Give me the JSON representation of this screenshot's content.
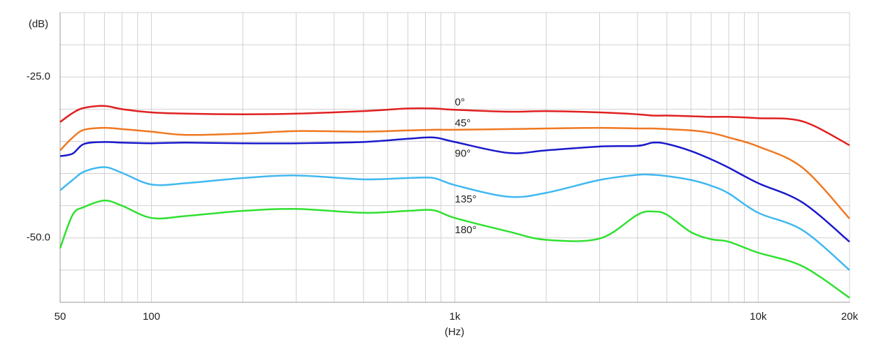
{
  "chart_data": {
    "type": "line",
    "x_label": "(Hz)",
    "y_label": "(dB)",
    "x_log": true,
    "xlim": [
      50,
      20000
    ],
    "ylim": [
      -60,
      -15
    ],
    "xticks": [
      {
        "value": 50,
        "label": "50"
      },
      {
        "value": 100,
        "label": "100"
      },
      {
        "value": 1000,
        "label": "1k"
      },
      {
        "value": 10000,
        "label": "10k"
      },
      {
        "value": 20000,
        "label": "20k"
      }
    ],
    "yticks": [
      {
        "value": -25,
        "label": "-25.0"
      },
      {
        "value": -50,
        "label": "-50.0"
      }
    ],
    "xgrid": [
      50,
      60,
      70,
      80,
      90,
      100,
      200,
      300,
      400,
      500,
      600,
      700,
      800,
      900,
      1000,
      2000,
      3000,
      4000,
      5000,
      6000,
      7000,
      8000,
      9000,
      10000,
      20000
    ],
    "ygrid": [
      -60,
      -55,
      -50,
      -45,
      -40,
      -35,
      -30,
      -25,
      -20,
      -15
    ],
    "x": [
      50,
      55,
      60,
      70,
      80,
      100,
      130,
      200,
      300,
      500,
      700,
      850,
      1000,
      1500,
      2000,
      3000,
      4000,
      4500,
      5000,
      6000,
      7000,
      8000,
      10000,
      14000,
      20000
    ],
    "series": [
      {
        "name": "0°",
        "color": "#e02020",
        "values": [
          -32.0,
          -30.6,
          -29.8,
          -29.5,
          -30.0,
          -30.5,
          -30.7,
          -30.8,
          -30.7,
          -30.3,
          -29.9,
          -29.9,
          -30.1,
          -30.4,
          -30.3,
          -30.5,
          -30.8,
          -31.0,
          -31.0,
          -31.1,
          -31.2,
          -31.2,
          -31.4,
          -31.9,
          -35.6
        ]
      },
      {
        "name": "45°",
        "color": "#f07820",
        "values": [
          -36.4,
          -34.4,
          -33.2,
          -32.9,
          -33.1,
          -33.5,
          -34.0,
          -33.8,
          -33.4,
          -33.5,
          -33.3,
          -33.2,
          -33.2,
          -33.1,
          -33.0,
          -32.9,
          -33.0,
          -33.0,
          -33.1,
          -33.3,
          -33.7,
          -34.4,
          -35.8,
          -39.1,
          -47.0
        ]
      },
      {
        "name": "90°",
        "color": "#1a1acc",
        "values": [
          -37.3,
          -36.9,
          -35.4,
          -35.1,
          -35.2,
          -35.3,
          -35.2,
          -35.3,
          -35.3,
          -35.1,
          -34.6,
          -34.4,
          -35.1,
          -36.8,
          -36.4,
          -35.8,
          -35.7,
          -35.2,
          -35.4,
          -36.5,
          -37.8,
          -39.1,
          -41.5,
          -44.5,
          -50.6
        ]
      },
      {
        "name": "135°",
        "color": "#40b8f0",
        "values": [
          -42.6,
          -41.0,
          -39.7,
          -39.0,
          -39.9,
          -41.7,
          -41.5,
          -40.7,
          -40.3,
          -40.9,
          -40.7,
          -40.7,
          -41.8,
          -43.6,
          -43.0,
          -41.0,
          -40.2,
          -40.2,
          -40.4,
          -41.0,
          -41.9,
          -43.1,
          -46.1,
          -48.8,
          -55.0
        ]
      },
      {
        "name": "180°",
        "color": "#30e030",
        "values": [
          -51.6,
          -46.4,
          -45.2,
          -44.2,
          -45.0,
          -46.9,
          -46.6,
          -45.8,
          -45.5,
          -46.1,
          -45.8,
          -45.7,
          -46.9,
          -49.0,
          -50.3,
          -50.1,
          -46.4,
          -45.9,
          -46.4,
          -49.1,
          -50.2,
          -50.6,
          -52.3,
          -54.4,
          -59.3
        ]
      }
    ]
  }
}
